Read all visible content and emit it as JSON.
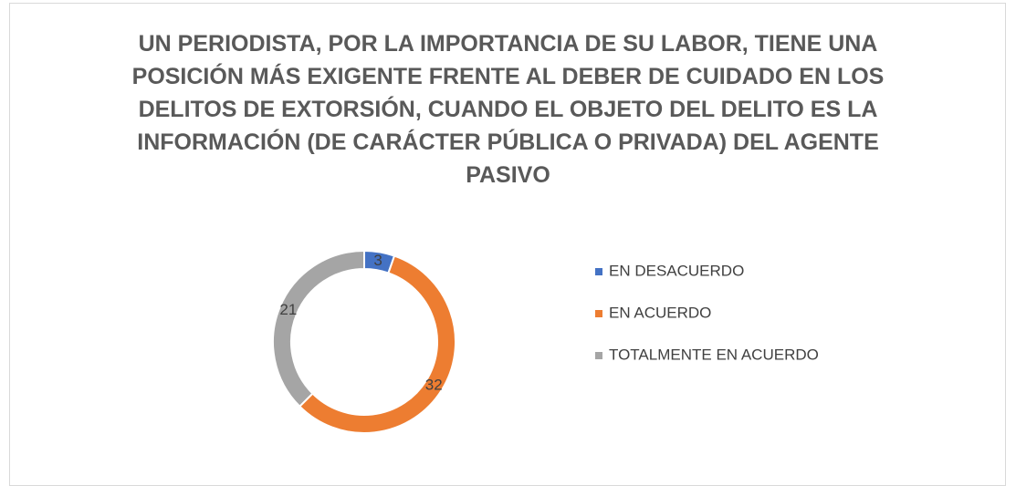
{
  "chart_data": {
    "type": "doughnut",
    "title": "UN PERIODISTA, POR LA IMPORTANCIA DE SU LABOR, TIENE UNA POSICIÓN MÁS EXIGENTE FRENTE AL DEBER DE CUIDADO EN LOS DELITOS DE EXTORSIÓN, CUANDO EL OBJETO DEL DELITO ES LA INFORMACIÓN (DE CARÁCTER PÚBLICA O PRIVADA) DEL AGENTE PASIVO",
    "categories": [
      "EN DESACUERDO",
      "EN ACUERDO",
      "TOTALMENTE EN ACUERDO"
    ],
    "values": [
      3,
      32,
      21
    ],
    "colors": [
      "#4472c4",
      "#ed7d31",
      "#a5a5a5"
    ],
    "legend": "right"
  }
}
